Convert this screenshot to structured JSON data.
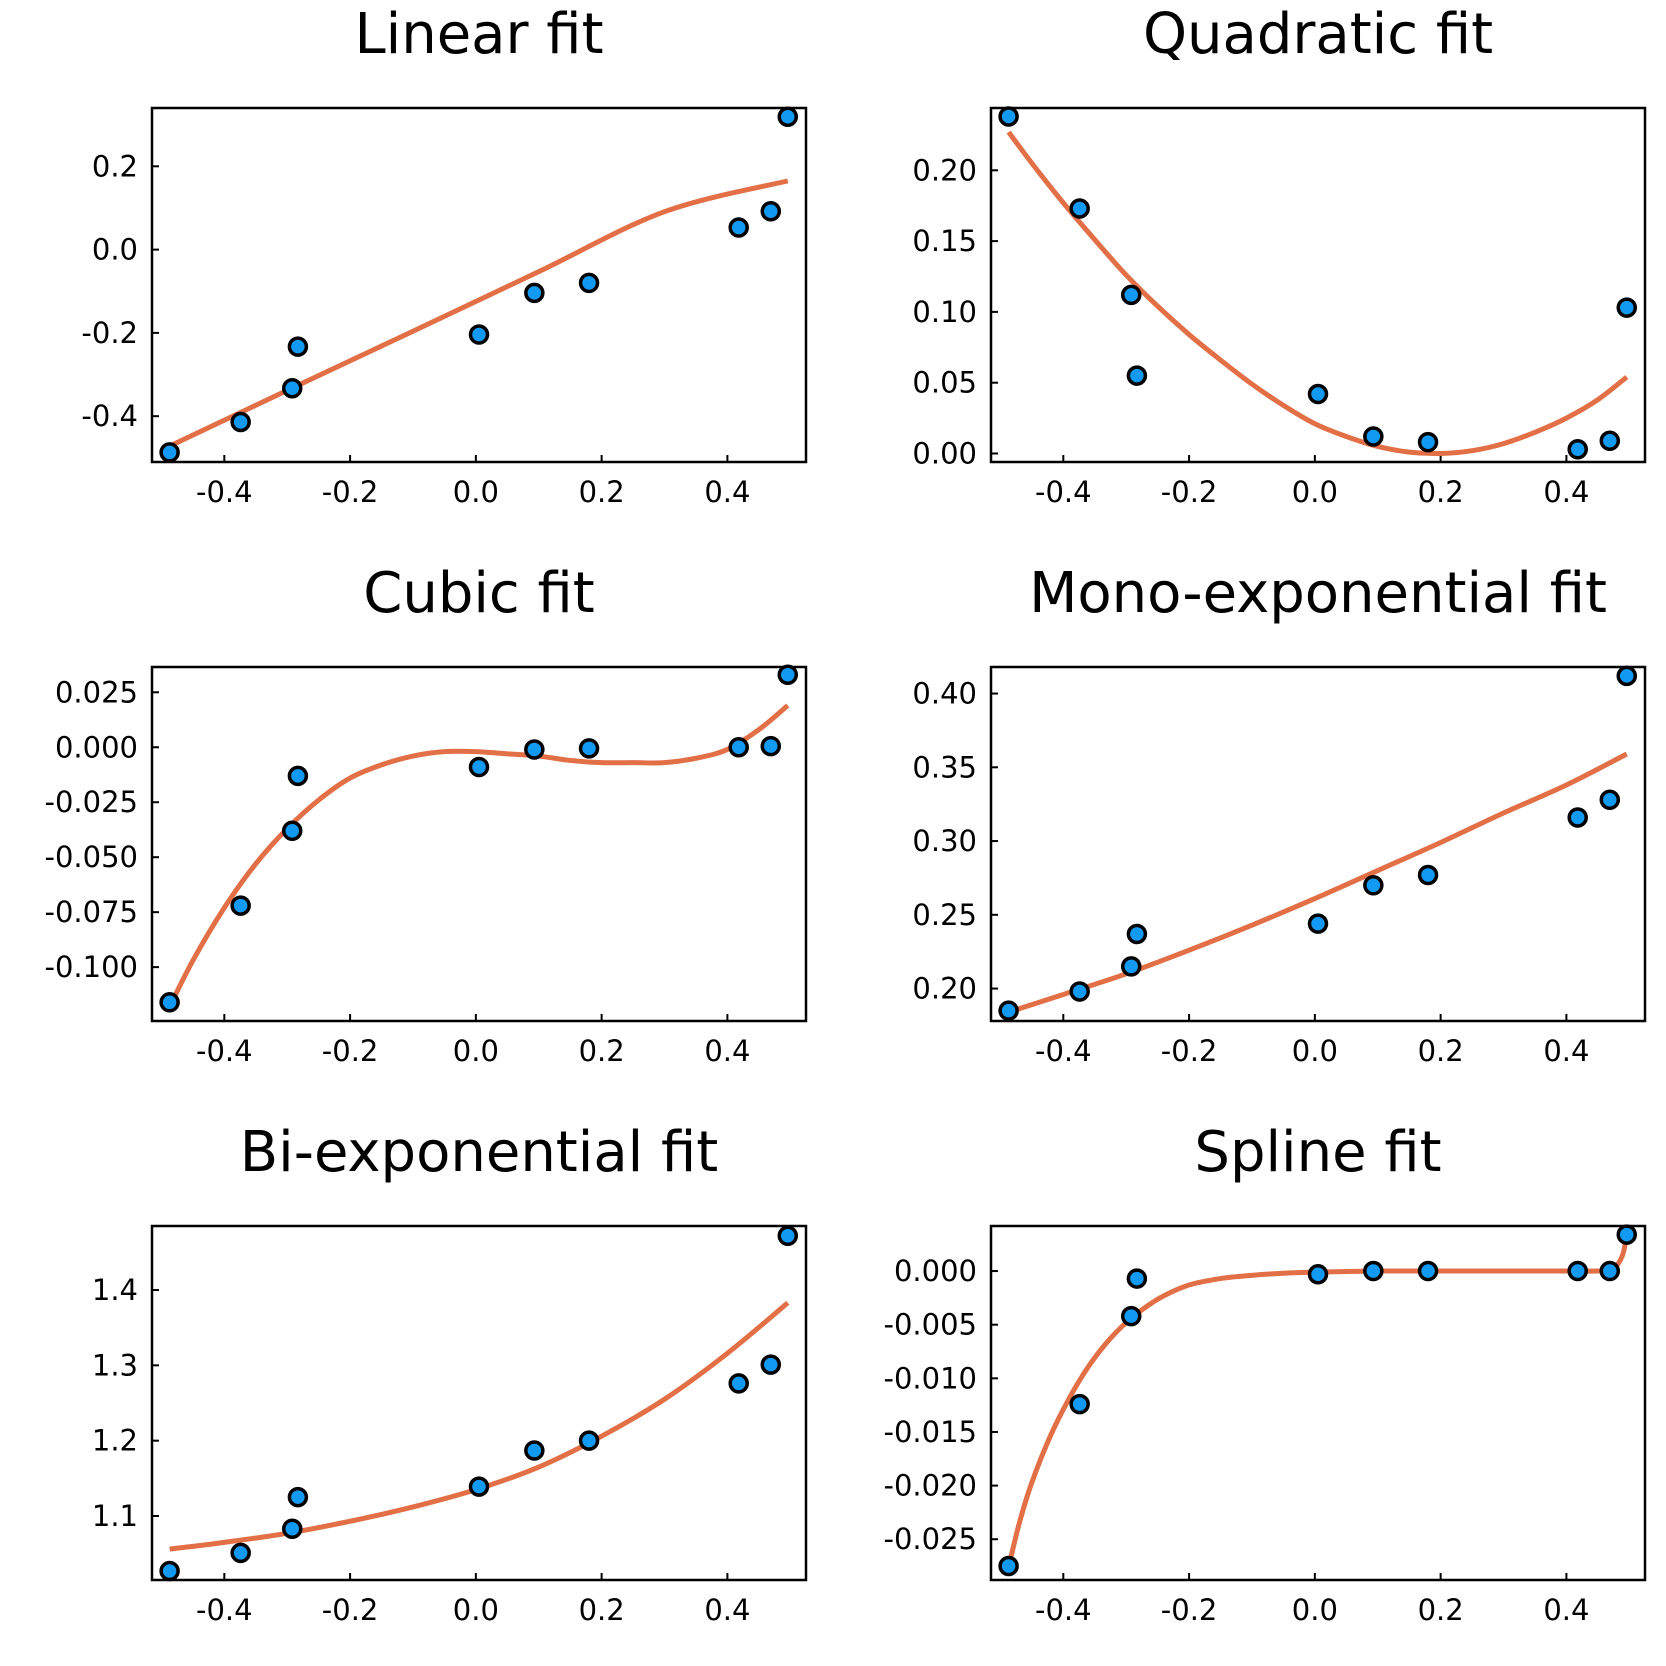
{
  "colors": {
    "points": "#129af3",
    "fit": "#e26f45"
  },
  "chart_data": [
    {
      "type": "scatter",
      "title": "Linear fit",
      "xlim": [
        -0.515,
        0.525
      ],
      "ylim": [
        -0.51,
        0.34
      ],
      "xticks": [
        -0.4,
        -0.2,
        0.0,
        0.2,
        0.4
      ],
      "xtick_labels": [
        "-0.4",
        "-0.2",
        "0.0",
        "0.2",
        "0.4"
      ],
      "yticks": [
        -0.4,
        -0.2,
        0.0,
        0.2
      ],
      "ytick_labels": [
        "-0.4",
        "-0.2",
        "0.0",
        "0.2"
      ],
      "points": {
        "x": [
          -0.487,
          -0.374,
          -0.292,
          -0.283,
          0.005,
          0.093,
          0.18,
          0.418,
          0.469,
          0.496
        ],
        "y": [
          -0.487,
          -0.414,
          -0.333,
          -0.233,
          -0.204,
          -0.104,
          -0.08,
          0.053,
          0.092,
          0.319
        ]
      },
      "fit": {
        "x": [
          -0.487,
          -0.3,
          -0.1,
          0.1,
          0.3,
          0.496
        ],
        "y": [
          -0.472,
          -0.338,
          -0.196,
          -0.053,
          0.091,
          0.165
        ]
      }
    },
    {
      "type": "scatter",
      "title": "Quadratic fit",
      "xlim": [
        -0.515,
        0.525
      ],
      "ylim": [
        -0.006,
        0.244
      ],
      "xticks": [
        -0.4,
        -0.2,
        0.0,
        0.2,
        0.4
      ],
      "xtick_labels": [
        "-0.4",
        "-0.2",
        "0.0",
        "0.2",
        "0.4"
      ],
      "yticks": [
        0.0,
        0.05,
        0.1,
        0.15,
        0.2
      ],
      "ytick_labels": [
        "0.00",
        "0.05",
        "0.10",
        "0.15",
        "0.20"
      ],
      "points": {
        "x": [
          -0.487,
          -0.374,
          -0.292,
          -0.283,
          0.005,
          0.093,
          0.18,
          0.418,
          0.469,
          0.496
        ],
        "y": [
          0.238,
          0.173,
          0.112,
          0.055,
          0.042,
          0.012,
          0.008,
          0.003,
          0.009,
          0.103
        ]
      },
      "fit": {
        "x": [
          -0.487,
          -0.45,
          -0.4,
          -0.35,
          -0.3,
          -0.25,
          -0.2,
          -0.15,
          -0.1,
          -0.05,
          0.0,
          0.05,
          0.1,
          0.15,
          0.2,
          0.25,
          0.3,
          0.35,
          0.4,
          0.45,
          0.496
        ],
        "y": [
          0.227,
          0.205,
          0.177,
          0.151,
          0.126,
          0.104,
          0.084,
          0.066,
          0.049,
          0.034,
          0.021,
          0.012,
          0.005,
          0.001,
          0.0,
          0.002,
          0.007,
          0.015,
          0.025,
          0.038,
          0.054
        ]
      }
    },
    {
      "type": "scatter",
      "title": "Cubic fit",
      "xlim": [
        -0.515,
        0.525
      ],
      "ylim": [
        -0.1245,
        0.0365
      ],
      "xticks": [
        -0.4,
        -0.2,
        0.0,
        0.2,
        0.4
      ],
      "xtick_labels": [
        "-0.4",
        "-0.2",
        "0.0",
        "0.2",
        "0.4"
      ],
      "yticks": [
        -0.1,
        -0.075,
        -0.05,
        -0.025,
        0.0,
        0.025
      ],
      "ytick_labels": [
        "-0.100",
        "-0.075",
        "-0.050",
        "-0.025",
        "0.000",
        "0.025"
      ],
      "points": {
        "x": [
          -0.487,
          -0.374,
          -0.292,
          -0.283,
          0.005,
          0.093,
          0.18,
          0.418,
          0.469,
          0.496
        ],
        "y": [
          -0.116,
          -0.072,
          -0.038,
          -0.013,
          -0.009,
          -0.001,
          -0.0005,
          0.0,
          0.0005,
          0.033
        ]
      },
      "fit": {
        "x": [
          -0.487,
          -0.45,
          -0.4,
          -0.35,
          -0.3,
          -0.25,
          -0.2,
          -0.15,
          -0.1,
          -0.05,
          0.0,
          0.05,
          0.1,
          0.15,
          0.2,
          0.25,
          0.3,
          0.35,
          0.4,
          0.45,
          0.496
        ],
        "y": [
          -0.118,
          -0.097,
          -0.073,
          -0.053,
          -0.037,
          -0.024,
          -0.014,
          -0.008,
          -0.004,
          -0.002,
          -0.002,
          -0.003,
          -0.004,
          -0.006,
          -0.007,
          -0.007,
          -0.007,
          -0.005,
          -0.001,
          0.008,
          0.019
        ]
      }
    },
    {
      "type": "scatter",
      "title": "Mono-exponential fit",
      "xlim": [
        -0.515,
        0.525
      ],
      "ylim": [
        0.178,
        0.418
      ],
      "xticks": [
        -0.4,
        -0.2,
        0.0,
        0.2,
        0.4
      ],
      "xtick_labels": [
        "-0.4",
        "-0.2",
        "0.0",
        "0.2",
        "0.4"
      ],
      "yticks": [
        0.2,
        0.25,
        0.3,
        0.35,
        0.4
      ],
      "ytick_labels": [
        "0.20",
        "0.25",
        "0.30",
        "0.35",
        "0.40"
      ],
      "points": {
        "x": [
          -0.487,
          -0.374,
          -0.292,
          -0.283,
          0.005,
          0.093,
          0.18,
          0.418,
          0.469,
          0.496
        ],
        "y": [
          0.185,
          0.198,
          0.215,
          0.237,
          0.244,
          0.27,
          0.277,
          0.316,
          0.328,
          0.412
        ]
      },
      "fit": {
        "x": [
          -0.487,
          -0.4,
          -0.3,
          -0.2,
          -0.1,
          0.0,
          0.1,
          0.2,
          0.3,
          0.4,
          0.496
        ],
        "y": [
          0.184,
          0.196,
          0.21,
          0.226,
          0.243,
          0.261,
          0.28,
          0.299,
          0.319,
          0.338,
          0.359
        ]
      }
    },
    {
      "type": "scatter",
      "title": "Bi-exponential fit",
      "xlim": [
        -0.515,
        0.525
      ],
      "ylim": [
        1.015,
        1.485
      ],
      "xticks": [
        -0.4,
        -0.2,
        0.0,
        0.2,
        0.4
      ],
      "xtick_labels": [
        "-0.4",
        "-0.2",
        "0.0",
        "0.2",
        "0.4"
      ],
      "yticks": [
        1.1,
        1.2,
        1.3,
        1.4
      ],
      "ytick_labels": [
        "1.1",
        "1.2",
        "1.3",
        "1.4"
      ],
      "points": {
        "x": [
          -0.487,
          -0.374,
          -0.292,
          -0.283,
          0.005,
          0.093,
          0.18,
          0.418,
          0.469,
          0.496
        ],
        "y": [
          1.027,
          1.051,
          1.083,
          1.125,
          1.139,
          1.187,
          1.2,
          1.276,
          1.301,
          1.472
        ]
      },
      "fit": {
        "x": [
          -0.487,
          -0.4,
          -0.3,
          -0.2,
          -0.1,
          0.0,
          0.1,
          0.2,
          0.3,
          0.4,
          0.496
        ],
        "y": [
          1.056,
          1.065,
          1.077,
          1.093,
          1.112,
          1.135,
          1.165,
          1.206,
          1.255,
          1.316,
          1.383
        ]
      }
    },
    {
      "type": "scatter",
      "title": "Spline fit",
      "xlim": [
        -0.515,
        0.525
      ],
      "ylim": [
        -0.0288,
        0.0042
      ],
      "xticks": [
        -0.4,
        -0.2,
        0.0,
        0.2,
        0.4
      ],
      "xtick_labels": [
        "-0.4",
        "-0.2",
        "0.0",
        "0.2",
        "0.4"
      ],
      "yticks": [
        -0.025,
        -0.02,
        -0.015,
        -0.01,
        -0.005,
        0.0
      ],
      "ytick_labels": [
        "-0.025",
        "-0.020",
        "-0.015",
        "-0.010",
        "-0.005",
        "0.000"
      ],
      "points": {
        "x": [
          -0.487,
          -0.374,
          -0.292,
          -0.283,
          0.005,
          0.093,
          0.18,
          0.418,
          0.469,
          0.496
        ],
        "y": [
          -0.0275,
          -0.0124,
          -0.0042,
          -0.0007,
          -0.0003,
          0.0,
          0.0,
          0.0,
          0.0,
          0.0034
        ]
      },
      "fit": {
        "x": [
          -0.487,
          -0.47,
          -0.45,
          -0.42,
          -0.39,
          -0.36,
          -0.33,
          -0.3,
          -0.27,
          -0.24,
          -0.2,
          -0.15,
          -0.1,
          -0.05,
          0.0,
          0.1,
          0.2,
          0.3,
          0.4,
          0.45,
          0.47,
          0.48,
          0.49,
          0.496
        ],
        "y": [
          -0.0276,
          -0.0235,
          -0.0197,
          -0.0153,
          -0.0118,
          -0.0089,
          -0.0066,
          -0.0048,
          -0.0034,
          -0.0023,
          -0.0013,
          -0.0007,
          -0.0004,
          -0.0002,
          -0.0001,
          0.0,
          0.0,
          0.0,
          0.0,
          0.0,
          0.0001,
          0.0005,
          0.0016,
          0.0034
        ]
      }
    }
  ]
}
